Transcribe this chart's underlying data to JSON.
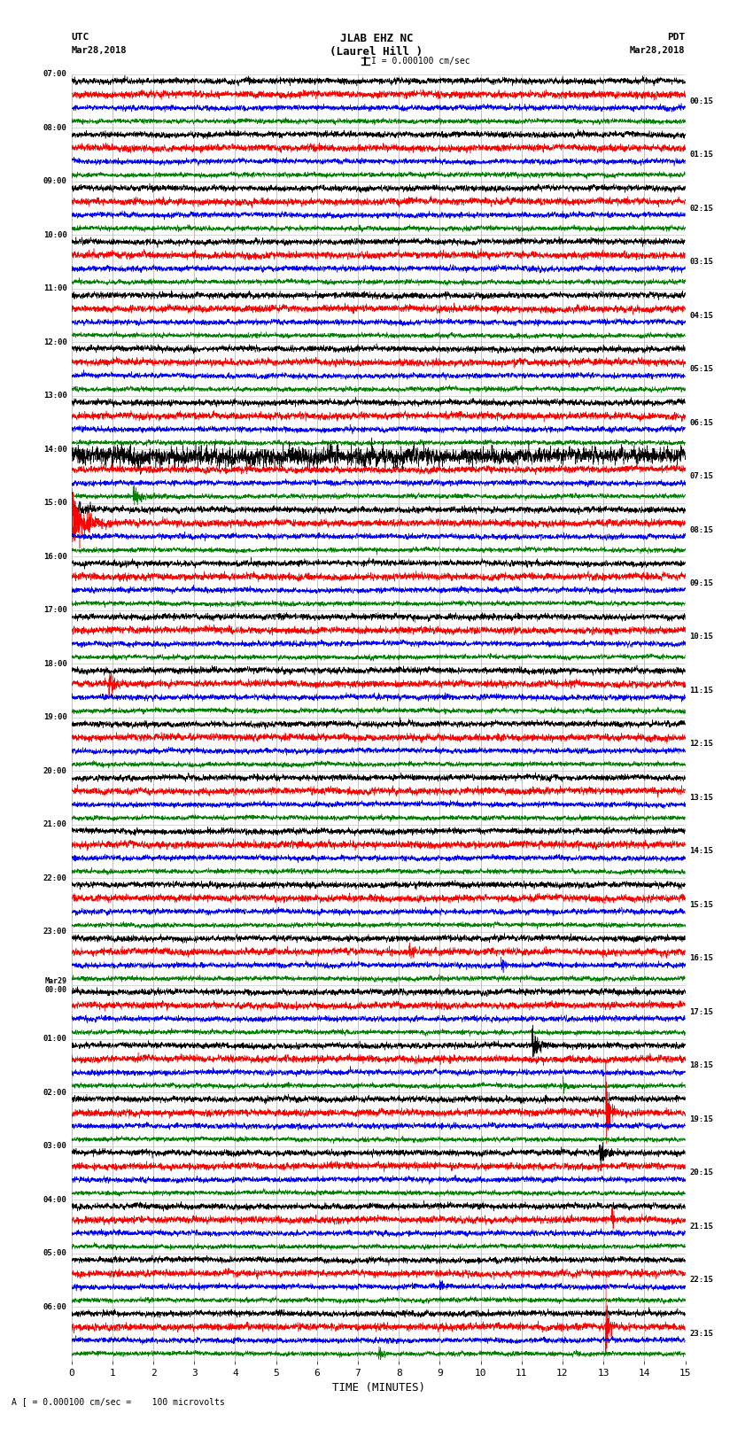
{
  "title_line1": "JLAB EHZ NC",
  "title_line2": "(Laurel Hill )",
  "scale_label": "I = 0.000100 cm/sec",
  "utc_label": "UTC",
  "utc_date": "Mar28,2018",
  "pdt_label": "PDT",
  "pdt_date": "Mar28,2018",
  "bottom_label": "A [ = 0.000100 cm/sec =    100 microvolts",
  "xlabel": "TIME (MINUTES)",
  "left_times": [
    "07:00",
    "08:00",
    "09:00",
    "10:00",
    "11:00",
    "12:00",
    "13:00",
    "14:00",
    "15:00",
    "16:00",
    "17:00",
    "18:00",
    "19:00",
    "20:00",
    "21:00",
    "22:00",
    "23:00",
    "Mar29\n00:00",
    "01:00",
    "02:00",
    "03:00",
    "04:00",
    "05:00",
    "06:00"
  ],
  "right_times": [
    "00:15",
    "01:15",
    "02:15",
    "03:15",
    "04:15",
    "05:15",
    "06:15",
    "07:15",
    "08:15",
    "09:15",
    "10:15",
    "11:15",
    "12:15",
    "13:15",
    "14:15",
    "15:15",
    "16:15",
    "17:15",
    "18:15",
    "19:15",
    "20:15",
    "21:15",
    "22:15",
    "23:15"
  ],
  "colors": [
    "black",
    "red",
    "blue",
    "green"
  ],
  "num_rows": 24,
  "traces_per_row": 4,
  "minutes": 15,
  "samples": 4500,
  "background": "white",
  "noise_amp": 0.3,
  "trace_scale": 0.4
}
